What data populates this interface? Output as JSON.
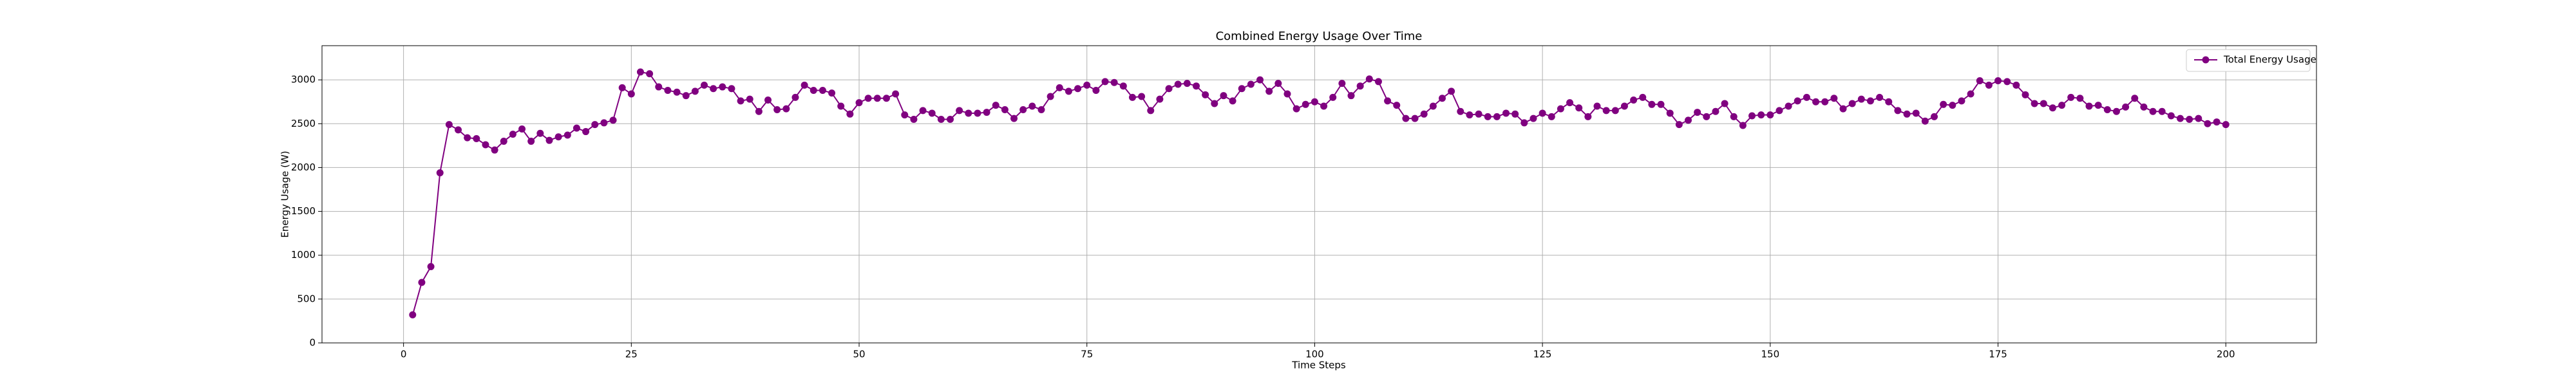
{
  "chart_data": {
    "type": "line",
    "title": "Combined Energy Usage Over Time",
    "xlabel": "Time Steps",
    "ylabel": "Energy Usage (W)",
    "x": [
      1,
      2,
      3,
      4,
      5,
      6,
      7,
      8,
      9,
      10,
      11,
      12,
      13,
      14,
      15,
      16,
      17,
      18,
      19,
      20,
      21,
      22,
      23,
      24,
      25,
      26,
      27,
      28,
      29,
      30,
      31,
      32,
      33,
      34,
      35,
      36,
      37,
      38,
      39,
      40,
      41,
      42,
      43,
      44,
      45,
      46,
      47,
      48,
      49,
      50,
      51,
      52,
      53,
      54,
      55,
      56,
      57,
      58,
      59,
      60,
      61,
      62,
      63,
      64,
      65,
      66,
      67,
      68,
      69,
      70,
      71,
      72,
      73,
      74,
      75,
      76,
      77,
      78,
      79,
      80,
      81,
      82,
      83,
      84,
      85,
      86,
      87,
      88,
      89,
      90,
      91,
      92,
      93,
      94,
      95,
      96,
      97,
      98,
      99,
      100,
      101,
      102,
      103,
      104,
      105,
      106,
      107,
      108,
      109,
      110,
      111,
      112,
      113,
      114,
      115,
      116,
      117,
      118,
      119,
      120,
      121,
      122,
      123,
      124,
      125,
      126,
      127,
      128,
      129,
      130,
      131,
      132,
      133,
      134,
      135,
      136,
      137,
      138,
      139,
      140,
      141,
      142,
      143,
      144,
      145,
      146,
      147,
      148,
      149,
      150,
      151,
      152,
      153,
      154,
      155,
      156,
      157,
      158,
      159,
      160,
      161,
      162,
      163,
      164,
      165,
      166,
      167,
      168,
      169,
      170,
      171,
      172,
      173,
      174,
      175,
      176,
      177,
      178,
      179,
      180,
      181,
      182,
      183,
      184,
      185,
      186,
      187,
      188,
      189,
      190,
      191,
      192,
      193,
      194,
      195,
      196,
      197,
      198,
      199,
      200
    ],
    "series": [
      {
        "name": "Total Energy Usage",
        "color": "#800080",
        "values": [
          320,
          690,
          870,
          1940,
          2490,
          2430,
          2340,
          2330,
          2260,
          2200,
          2300,
          2380,
          2440,
          2300,
          2390,
          2310,
          2350,
          2370,
          2450,
          2410,
          2490,
          2510,
          2540,
          2910,
          2840,
          3090,
          3070,
          2920,
          2880,
          2860,
          2820,
          2870,
          2940,
          2900,
          2920,
          2900,
          2760,
          2780,
          2640,
          2770,
          2660,
          2670,
          2800,
          2940,
          2880,
          2880,
          2850,
          2700,
          2610,
          2740,
          2790,
          2790,
          2790,
          2840,
          2600,
          2550,
          2650,
          2620,
          2550,
          2550,
          2650,
          2620,
          2620,
          2630,
          2710,
          2660,
          2560,
          2660,
          2700,
          2660,
          2810,
          2910,
          2870,
          2900,
          2940,
          2880,
          2980,
          2970,
          2930,
          2800,
          2810,
          2650,
          2780,
          2900,
          2950,
          2960,
          2930,
          2830,
          2730,
          2820,
          2760,
          2900,
          2950,
          3000,
          2870,
          2960,
          2840,
          2670,
          2720,
          2750,
          2700,
          2800,
          2960,
          2820,
          2930,
          3010,
          2980,
          2760,
          2710,
          2560,
          2560,
          2610,
          2700,
          2790,
          2870,
          2640,
          2600,
          2610,
          2580,
          2580,
          2620,
          2610,
          2510,
          2560,
          2620,
          2580,
          2670,
          2740,
          2680,
          2580,
          2700,
          2650,
          2650,
          2700,
          2770,
          2800,
          2720,
          2720,
          2620,
          2490,
          2540,
          2630,
          2580,
          2640,
          2730,
          2580,
          2480,
          2590,
          2600,
          2600,
          2650,
          2700,
          2760,
          2800,
          2750,
          2750,
          2790,
          2670,
          2730,
          2780,
          2760,
          2800,
          2750,
          2650,
          2610,
          2620,
          2530,
          2580,
          2720,
          2710,
          2760,
          2840,
          2990,
          2940,
          2990,
          2980,
          2940,
          2830,
          2730,
          2730,
          2680,
          2710,
          2800,
          2790,
          2700,
          2710,
          2660,
          2640,
          2690,
          2790,
          2690,
          2640,
          2640,
          2590,
          2560,
          2550,
          2560,
          2500,
          2520,
          2490
        ]
      }
    ],
    "xlim": [
      -8.95,
      209.95
    ],
    "xticks": [
      0,
      25,
      50,
      75,
      100,
      125,
      150,
      175,
      200
    ],
    "ylim": [
      0,
      3390
    ],
    "yticks": [
      0,
      500,
      1000,
      1500,
      2000,
      2500,
      3000
    ],
    "grid": true,
    "legend": "upper right"
  }
}
